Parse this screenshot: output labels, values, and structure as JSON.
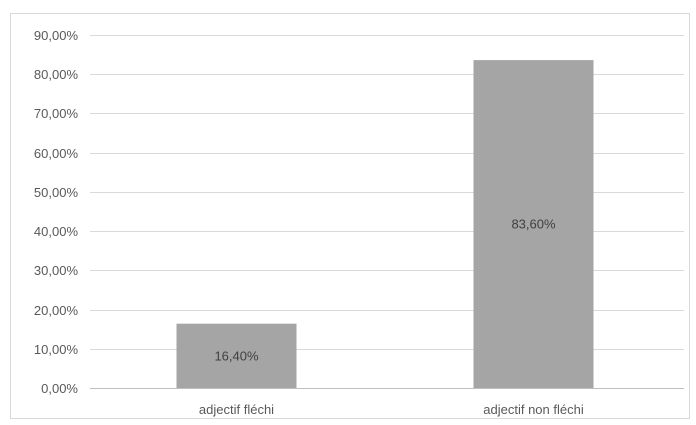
{
  "chart_data": {
    "type": "bar",
    "categories": [
      "adjectif fléchi",
      "adjectif non fléchi"
    ],
    "values": [
      16.4,
      83.6
    ],
    "data_labels": [
      "16,40%",
      "83,60%"
    ],
    "title": "",
    "xlabel": "",
    "ylabel": "",
    "ylim": [
      0,
      90
    ],
    "y_ticks": [
      0,
      10,
      20,
      30,
      40,
      50,
      60,
      70,
      80,
      90
    ],
    "y_tick_labels": [
      "0,00%",
      "10,00%",
      "20,00%",
      "30,00%",
      "40,00%",
      "50,00%",
      "60,00%",
      "70,00%",
      "80,00%",
      "90,00%"
    ],
    "grid": true,
    "legend": "none",
    "colors": {
      "bar": "#a5a5a5",
      "grid": "#d9d9d9",
      "axis": "#bfbfbf",
      "text": "#595959"
    }
  }
}
